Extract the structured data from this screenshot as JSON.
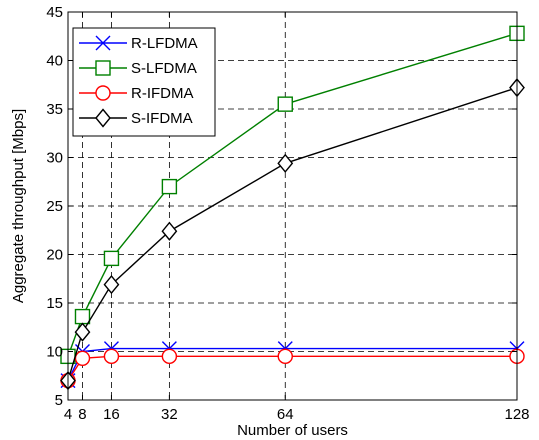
{
  "chart_data": {
    "type": "line",
    "title": "",
    "xlabel": "Number of users",
    "ylabel": "Aggregate throughput [Mbps]",
    "x": [
      4,
      8,
      16,
      32,
      64,
      128
    ],
    "x_ticks": [
      4,
      8,
      16,
      32,
      64,
      128
    ],
    "xlim": [
      4,
      128
    ],
    "ylim": [
      5,
      45
    ],
    "y_ticks": [
      5,
      10,
      15,
      20,
      25,
      30,
      35,
      40,
      45
    ],
    "grid": true,
    "legend_position": "top-left",
    "series": [
      {
        "name": "R-LFDMA",
        "color": "#0000ff",
        "marker": "x",
        "values": [
          7.0,
          10.0,
          10.3,
          10.3,
          10.3,
          10.3
        ]
      },
      {
        "name": "S-LFDMA",
        "color": "#008000",
        "marker": "square",
        "values": [
          9.5,
          13.6,
          19.6,
          27.0,
          35.5,
          42.8
        ]
      },
      {
        "name": "R-IFDMA",
        "color": "#ff0000",
        "marker": "circle",
        "values": [
          7.0,
          9.3,
          9.5,
          9.5,
          9.5,
          9.5
        ]
      },
      {
        "name": "S-IFDMA",
        "color": "#000000",
        "marker": "diamond",
        "values": [
          7.0,
          12.0,
          16.9,
          22.4,
          29.4,
          37.2
        ]
      }
    ]
  }
}
